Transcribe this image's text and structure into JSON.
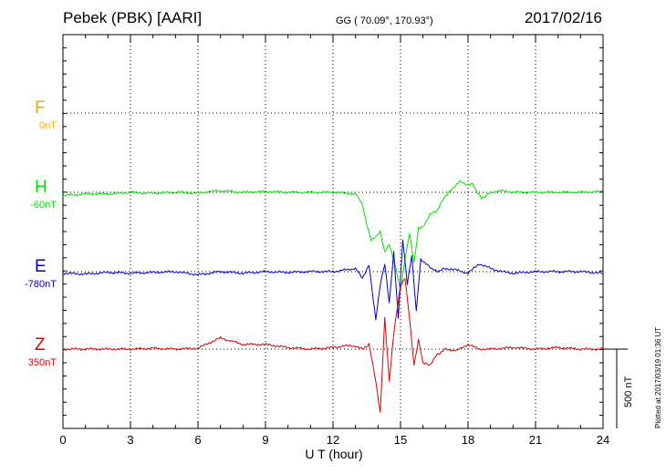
{
  "header": {
    "station": "Pebek (PBK)  [AARI]",
    "coords": "GG ( 70.09°, 170.93°)",
    "date": "2017/02/16"
  },
  "footer": {
    "plotted": "Plotted at 2017/03/19 01:36 UT"
  },
  "scale_bar": {
    "label": "500 nT",
    "value_nT": 500
  },
  "chart_data": {
    "type": "line",
    "title": "Pebek (PBK)  [AARI]",
    "xlabel": "U T (hour)",
    "xlim": [
      0,
      24
    ],
    "xticks": [
      0,
      3,
      6,
      9,
      12,
      15,
      18,
      21,
      24
    ],
    "grid": true,
    "series": [
      {
        "name": "F",
        "baseline": "0nT",
        "color": "#ffa500",
        "x": [],
        "y": []
      },
      {
        "name": "H",
        "baseline": "-60nT",
        "color": "#00dd00",
        "x": [
          0,
          1,
          2,
          3,
          4,
          5,
          6,
          6.5,
          7,
          8,
          9,
          10,
          11,
          12,
          12.5,
          13,
          13.3,
          13.5,
          13.7,
          13.9,
          14.1,
          14.3,
          14.5,
          14.8,
          15.0,
          15.2,
          15.4,
          15.6,
          15.8,
          16.0,
          16.3,
          16.6,
          17.0,
          17.3,
          17.6,
          17.9,
          18.2,
          18.6,
          19.0,
          19.5,
          20,
          21,
          22,
          23,
          24
        ],
        "y": [
          -20,
          -10,
          -10,
          0,
          -5,
          0,
          -5,
          5,
          10,
          0,
          5,
          0,
          0,
          0,
          -5,
          -10,
          -70,
          -200,
          -300,
          -280,
          -250,
          -380,
          -330,
          -480,
          -620,
          -420,
          -260,
          -450,
          -230,
          -220,
          -140,
          -120,
          -20,
          20,
          70,
          50,
          50,
          -40,
          0,
          10,
          0,
          0,
          0,
          0,
          5
        ]
      },
      {
        "name": "E",
        "baseline": "-780nT",
        "color": "#0000cc",
        "x": [
          0,
          1,
          2,
          3,
          4,
          5,
          6,
          7,
          8,
          9,
          10,
          11,
          12,
          12.5,
          13,
          13.3,
          13.6,
          13.9,
          14.1,
          14.3,
          14.5,
          14.7,
          14.9,
          15.1,
          15.3,
          15.5,
          15.7,
          15.9,
          16.2,
          16.6,
          17,
          17.5,
          18,
          18.5,
          19,
          19.5,
          20,
          21,
          22,
          23,
          24
        ],
        "y": [
          -10,
          -15,
          -5,
          -10,
          -5,
          0,
          -20,
          0,
          -10,
          0,
          -5,
          0,
          0,
          10,
          20,
          -40,
          40,
          -300,
          -80,
          50,
          -200,
          120,
          -300,
          200,
          -80,
          100,
          -250,
          80,
          40,
          0,
          20,
          10,
          -10,
          50,
          20,
          0,
          -10,
          0,
          0,
          0,
          -10
        ]
      },
      {
        "name": "Z",
        "baseline": "350nT",
        "color": "#dd0000",
        "x": [
          0,
          1,
          2,
          3,
          4,
          5,
          6,
          6.5,
          7,
          7.5,
          8,
          9,
          10,
          11,
          12,
          12.5,
          13,
          13.3,
          13.6,
          13.9,
          14.1,
          14.3,
          14.5,
          14.7,
          14.9,
          15.0,
          15.2,
          15.4,
          15.6,
          15.8,
          16.0,
          16.3,
          16.6,
          17,
          17.5,
          18,
          18.5,
          19,
          20,
          21,
          22,
          23,
          24
        ],
        "y": [
          0,
          0,
          0,
          0,
          5,
          0,
          5,
          40,
          70,
          50,
          30,
          30,
          10,
          0,
          10,
          20,
          20,
          0,
          30,
          -200,
          -400,
          200,
          -200,
          100,
          300,
          400,
          450,
          200,
          -100,
          60,
          -90,
          -100,
          -40,
          0,
          -10,
          30,
          0,
          0,
          10,
          0,
          10,
          0,
          0
        ]
      }
    ]
  }
}
